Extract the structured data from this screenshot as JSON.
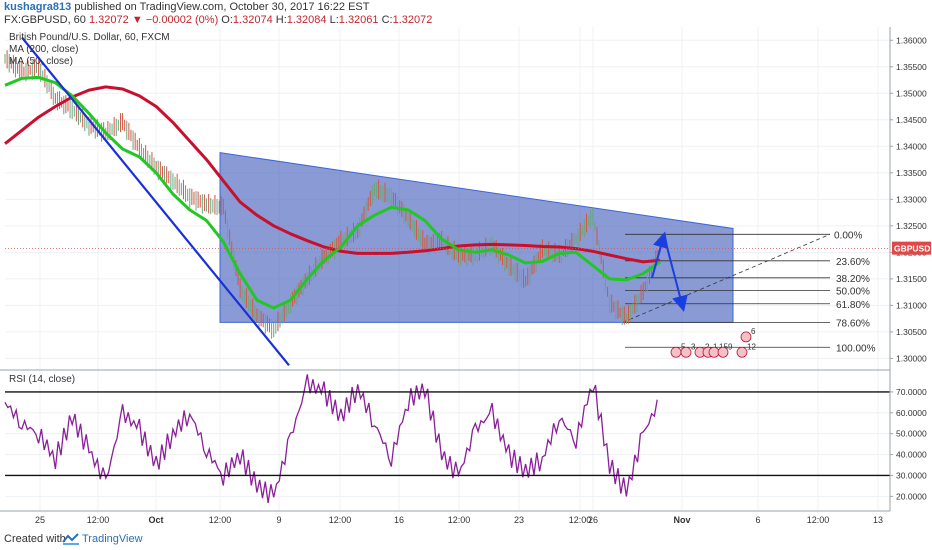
{
  "header": {
    "author": "kushagra813",
    "published_text": "published on TradingView.com, October 30, 2017 16:22 EST",
    "symbol": "FX:GBPUSD, 60",
    "last": "1.32072",
    "change": "−0.00002 (0%)",
    "o_label": "O:",
    "o_value": "1.32074",
    "h_label": "H:",
    "h_value": "1.32084",
    "l_label": "L:",
    "l_value": "1.32061",
    "c_label": "C:",
    "c_value": "1.32072"
  },
  "legend": {
    "series_title": "British Pound/U.S. Dollar, 60, FXCM",
    "ma200": "MA (200, close)",
    "ma50": "MA (50, close)",
    "rsi": "RSI (14, close)"
  },
  "price_badge": "GBPUSD",
  "footer": {
    "made_with": "Created with",
    "brand": "TradingView"
  },
  "colors": {
    "ma200": "#c8102e",
    "ma50": "#22c722",
    "rsi": "#8a1f9a",
    "trendline": "#1a2fd8",
    "channel_fill": "#5b73c4",
    "arrow": "#1a3fe0",
    "price_line": "#d9534f"
  },
  "chart_data": {
    "type": "line",
    "title": "British Pound/U.S. Dollar, 60, FXCM",
    "price_axis": {
      "ticks": [
        1.36,
        1.355,
        1.35,
        1.345,
        1.34,
        1.335,
        1.33,
        1.325,
        1.32,
        1.315,
        1.31,
        1.305,
        1.3
      ],
      "tick_labels": [
        "1.36000",
        "1.35500",
        "1.35000",
        "1.34500",
        "1.34000",
        "1.33500",
        "1.33000",
        "1.32500",
        "1.32000",
        "1.31500",
        "1.31000",
        "1.30500",
        "1.30000"
      ],
      "ylim": [
        1.298,
        1.3625
      ]
    },
    "rsi_axis": {
      "ticks": [
        70,
        60,
        50,
        40,
        30,
        20
      ],
      "tick_labels": [
        "70.0000",
        "60.0000",
        "50.0000",
        "40.0000",
        "30.0000",
        "20.0000"
      ],
      "ylim": [
        13,
        80
      ],
      "levels": [
        70,
        30
      ]
    },
    "x_axis": {
      "tick_labels": [
        "25",
        "12:00",
        "Oct",
        "12:00",
        "9",
        "12:00",
        "16",
        "12:00",
        "23",
        "12:00",
        "26",
        "Nov",
        "6",
        "12:00",
        "13"
      ],
      "bold": [
        "Oct",
        "Nov"
      ]
    },
    "fibonacci": {
      "levels": [
        "0.00%",
        "23.60%",
        "38.20%",
        "50.00%",
        "61.80%",
        "78.60%",
        "100.00%"
      ],
      "prices": [
        1.3234,
        1.3184,
        1.3152,
        1.3128,
        1.3103,
        1.3068,
        1.3021
      ]
    },
    "channel": {
      "top_left": 1.3388,
      "top_right": 1.3245,
      "bottom": 1.3068
    },
    "last_price": 1.3207,
    "event_labels": [
      "6",
      "5",
      "3",
      "2",
      "1",
      "15",
      "9",
      "12"
    ],
    "series": [
      {
        "name": "MA (200, close)",
        "values": [
          1.3405,
          1.343,
          1.3455,
          1.3475,
          1.3493,
          1.3506,
          1.3512,
          1.3508,
          1.3495,
          1.3475,
          1.3445,
          1.341,
          1.3375,
          1.3335,
          1.3295,
          1.327,
          1.325,
          1.3235,
          1.3222,
          1.321,
          1.3202,
          1.3198,
          1.3198,
          1.3198,
          1.32,
          1.3203,
          1.3207,
          1.3212,
          1.3214,
          1.3215,
          1.3214,
          1.3213,
          1.3211,
          1.321,
          1.3207,
          1.3202,
          1.3195,
          1.3188,
          1.3182,
          1.3185
        ]
      },
      {
        "name": "MA (50, close)",
        "values": [
          1.3515,
          1.3528,
          1.353,
          1.352,
          1.3495,
          1.3462,
          1.3425,
          1.3395,
          1.338,
          1.335,
          1.331,
          1.328,
          1.326,
          1.322,
          1.316,
          1.311,
          1.3095,
          1.311,
          1.315,
          1.3185,
          1.321,
          1.325,
          1.327,
          1.3285,
          1.328,
          1.326,
          1.3225,
          1.3205,
          1.32,
          1.3205,
          1.3195,
          1.318,
          1.3183,
          1.3198,
          1.32,
          1.3175,
          1.315,
          1.3148,
          1.316,
          1.3182
        ]
      },
      {
        "name": "GBPUSD",
        "values": [
          1.3565,
          1.354,
          1.3548,
          1.349,
          1.347,
          1.344,
          1.3425,
          1.3445,
          1.3395,
          1.336,
          1.3335,
          1.3305,
          1.329,
          1.3285,
          1.313,
          1.308,
          1.3055,
          1.3105,
          1.315,
          1.319,
          1.322,
          1.324,
          1.332,
          1.3305,
          1.3265,
          1.3215,
          1.322,
          1.3195,
          1.3195,
          1.3215,
          1.3175,
          1.3145,
          1.3205,
          1.3195,
          1.3225,
          1.327,
          1.3105,
          1.3075,
          1.3125,
          1.3205
        ]
      },
      {
        "name": "RSI (14, close)",
        "values": [
          65,
          55,
          50,
          38,
          58,
          42,
          27,
          60,
          52,
          35,
          50,
          60,
          42,
          30,
          40,
          25,
          20,
          48,
          74,
          70,
          58,
          72,
          55,
          38,
          66,
          72,
          40,
          30,
          52,
          60,
          40,
          32,
          38,
          58,
          47,
          75,
          35,
          22,
          50,
          66
        ]
      }
    ]
  }
}
